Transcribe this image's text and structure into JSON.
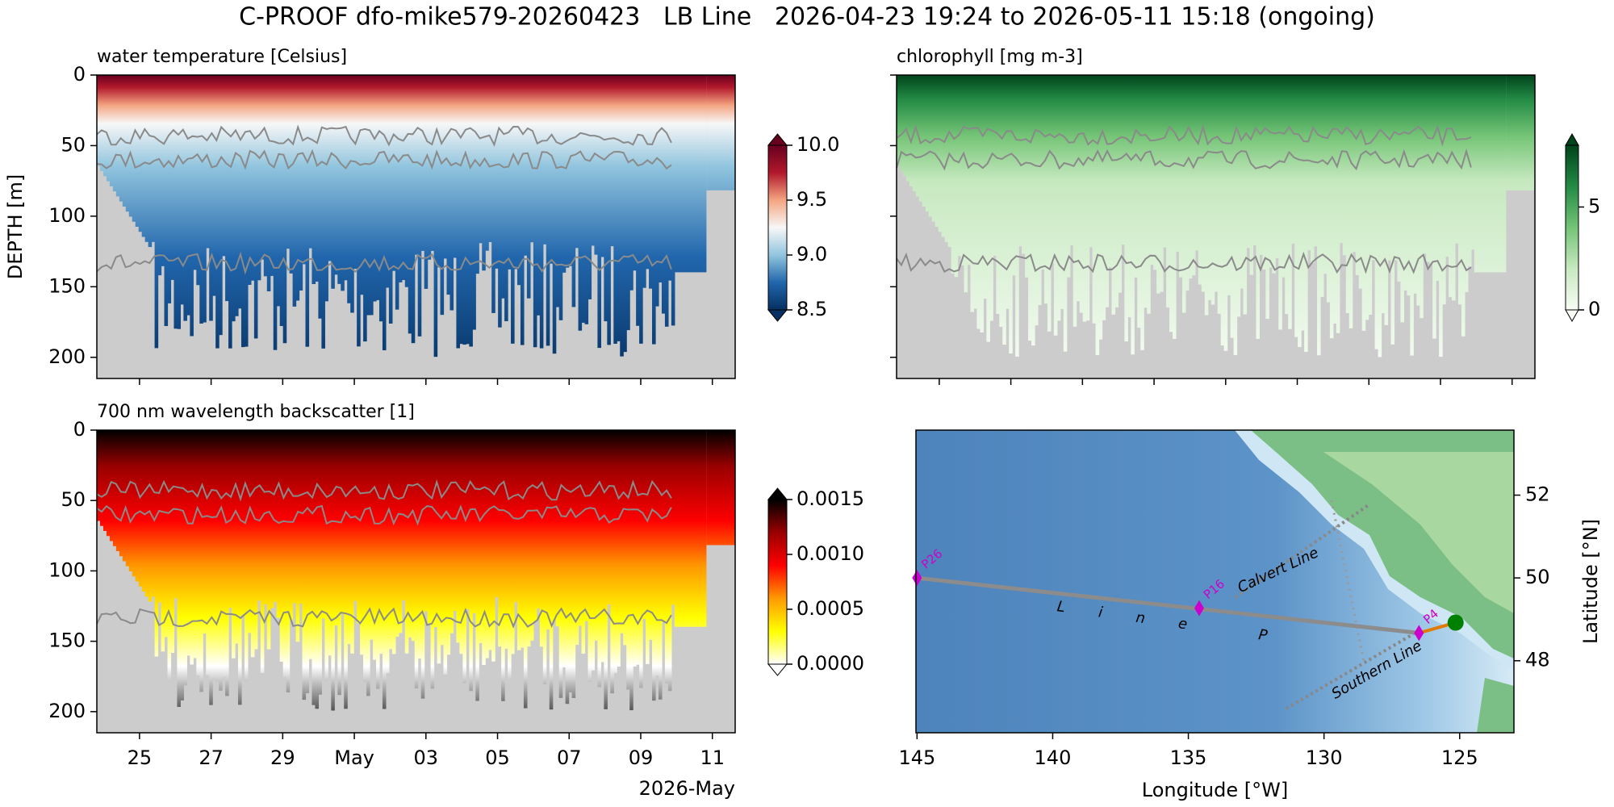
{
  "title": "C-PROOF dfo-mike579-20260423   LB Line   2026-04-23 19:24 to 2026-05-11 15:18 (ongoing)",
  "chart_data": [
    {
      "type": "section",
      "title": "water temperature [Celsius]",
      "ylabel": "DEPTH [m]",
      "xlim": [
        "2026-04-23T19:24",
        "2026-05-11T15:18"
      ],
      "xticks": [
        "2026-04-25T00:00",
        "2026-04-27T00:00",
        "2026-04-29T00:00",
        "2026-05-01T00:00",
        "2026-05-03T00:00",
        "2026-05-05T00:00",
        "2026-05-07T00:00",
        "2026-05-09T00:00",
        "2026-05-11T00:00"
      ],
      "ylim": [
        215,
        0
      ],
      "yticks": [
        0,
        50,
        100,
        150,
        200
      ],
      "colorbar": {
        "ylim": [
          8.5,
          10.0
        ],
        "yticks": [
          8.5,
          {
            "value": 9,
            "label": "9.0"
          },
          9.5,
          {
            "value": 10,
            "label": "10.0"
          }
        ],
        "colors": [
          "#053061",
          "#2166ac",
          "#92c5de",
          "#f7f7f7",
          "#f4a582",
          "#b2182b",
          "#67001f"
        ]
      }
    },
    {
      "type": "section",
      "title": "chlorophyll [mg m-3]",
      "xlim": [
        "2026-04-23T19:24",
        "2026-05-11T15:18"
      ],
      "xticks": [
        "2026-04-25T00:00",
        "2026-04-27T00:00",
        "2026-04-29T00:00",
        "2026-05-01T00:00",
        "2026-05-03T00:00",
        "2026-05-05T00:00",
        "2026-05-07T00:00",
        "2026-05-09T00:00",
        "2026-05-11T00:00"
      ],
      "ylim": [
        215,
        0
      ],
      "yticks": [
        0,
        50,
        100,
        150,
        200
      ],
      "colorbar": {
        "ylim": [
          0,
          8
        ],
        "yticks": [
          0,
          5
        ],
        "colors": [
          "#f7fcf5",
          "#c7e9c0",
          "#74c476",
          "#238b45",
          "#00441b"
        ]
      }
    },
    {
      "type": "section",
      "title": "700 nm wavelength backscatter [1]",
      "xlabel": "2026-May",
      "xlim": [
        "2026-04-23T19:24",
        "2026-05-11T15:18"
      ],
      "xticks": [
        {
          "value": "2026-04-25T00:00",
          "label": "25"
        },
        {
          "value": "2026-04-27T00:00",
          "label": "27"
        },
        {
          "value": "2026-04-29T00:00",
          "label": "29"
        },
        {
          "value": "2026-05-01T00:00",
          "label": "May"
        },
        {
          "value": "2026-05-03T00:00",
          "label": "03"
        },
        {
          "value": "2026-05-05T00:00",
          "label": "05"
        },
        {
          "value": "2026-05-07T00:00",
          "label": "07"
        },
        {
          "value": "2026-05-09T00:00",
          "label": "09"
        },
        {
          "value": "2026-05-11T00:00",
          "label": "11"
        }
      ],
      "ylim": [
        215,
        0
      ],
      "yticks": [
        0,
        50,
        100,
        150,
        200
      ],
      "colorbar": {
        "ylim": [
          0,
          0.0015
        ],
        "yticks": [
          {
            "value": 0,
            "label": "0.0000"
          },
          {
            "value": 0.0005,
            "label": "0.0005"
          },
          {
            "value": 0.001,
            "label": "0.0010"
          },
          {
            "value": 0.0015,
            "label": "0.0015"
          }
        ],
        "colors": [
          "#ffffff",
          "#ffff00",
          "#ff9900",
          "#ff0000",
          "#990000",
          "#000000"
        ]
      }
    },
    {
      "type": "map",
      "xlabel": "Longitude [°W]",
      "ylabel": "Latitude [°N]",
      "xlim": [
        145.04,
        123.0
      ],
      "xticks": [
        145,
        140,
        135,
        130,
        125
      ],
      "ylim": [
        46.26,
        53.57
      ],
      "yticks": [
        48,
        50,
        52
      ],
      "stations": {
        "names": [
          "P26",
          "P16",
          "P4"
        ],
        "lon": [
          145.0,
          134.6,
          126.5
        ],
        "lat": [
          50.0,
          49.27,
          48.67
        ]
      },
      "glider": {
        "lon": 125.15,
        "lat": 48.92
      },
      "line_labels": [
        "L i n e   P",
        "Calvert Line",
        "Southern Line"
      ]
    }
  ]
}
